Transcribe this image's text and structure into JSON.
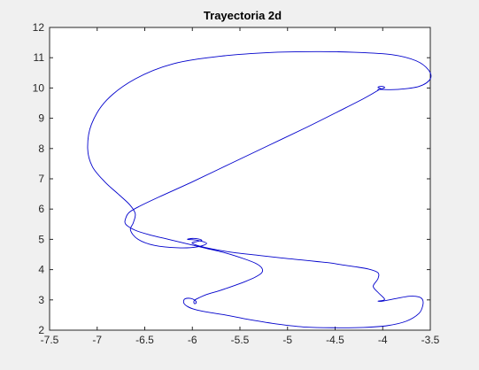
{
  "chart_data": {
    "type": "line",
    "title": "Trayectoria 2d",
    "xlabel": "",
    "ylabel": "",
    "xlim": [
      -7.5,
      -3.5
    ],
    "ylim": [
      2,
      12
    ],
    "xticks": [
      -7.5,
      -7,
      -6.5,
      -6,
      -5.5,
      -5,
      -4.5,
      -4,
      -3.5
    ],
    "xtick_labels": [
      "-7.5",
      "-7",
      "-6.5",
      "-6",
      "-5.5",
      "-5",
      "-4.5",
      "-4",
      "-3.5"
    ],
    "yticks": [
      2,
      3,
      4,
      5,
      6,
      7,
      8,
      9,
      10,
      11,
      12
    ],
    "ytick_labels": [
      "2",
      "3",
      "4",
      "5",
      "6",
      "7",
      "8",
      "9",
      "10",
      "11",
      "12"
    ],
    "grid": false,
    "series": [
      {
        "color": "#0000cc",
        "x": [
          -4.03,
          -4.05,
          -4.03,
          -4.0,
          -3.98,
          -4.0,
          -4.05,
          -4.02,
          -3.85,
          -3.62,
          -3.5,
          -3.52,
          -3.65,
          -3.9,
          -4.3,
          -4.7,
          -5.2,
          -5.7,
          -6.2,
          -6.6,
          -6.9,
          -7.06,
          -7.1,
          -7.05,
          -6.92,
          -6.78,
          -6.66,
          -6.6,
          -6.62,
          -6.65,
          -6.57,
          -6.4,
          -6.15,
          -5.95,
          -5.85,
          -5.95,
          -6.05,
          -6.0,
          -5.95,
          -5.9,
          -5.95,
          -6.0,
          -5.85,
          -5.6,
          -5.3,
          -5.05,
          -4.85,
          -4.7,
          -4.55,
          -4.45,
          -4.3,
          -4.15,
          -4.05,
          -4.05,
          -4.1,
          -4.05,
          -4.0,
          -3.98,
          -4.0,
          -4.05,
          -4.0,
          -3.85,
          -3.72,
          -3.62,
          -3.58,
          -3.58,
          -3.62,
          -3.75,
          -3.95,
          -4.2,
          -4.5,
          -4.8,
          -5.1,
          -5.4,
          -5.65,
          -5.85,
          -5.97,
          -6.05,
          -6.09,
          -6.08,
          -6.02,
          -5.97,
          -5.96,
          -5.98,
          -5.98,
          -5.93,
          -5.85,
          -5.72,
          -5.58,
          -5.45,
          -5.34,
          -5.27,
          -5.27,
          -5.33,
          -5.45,
          -5.65,
          -5.85,
          -6.05,
          -6.25,
          -6.45,
          -6.6,
          -6.7,
          -6.7,
          -6.66,
          -6.55,
          -6.35,
          -6.0,
          -5.6,
          -5.2,
          -4.8,
          -4.45,
          -4.2,
          -4.05,
          -4.02
        ],
        "y": [
          10.0,
          10.02,
          10.05,
          10.05,
          10.02,
          9.98,
          9.95,
          9.95,
          9.95,
          10.05,
          10.3,
          10.6,
          10.9,
          11.1,
          11.18,
          11.2,
          11.17,
          11.05,
          10.8,
          10.3,
          9.6,
          8.8,
          8.0,
          7.4,
          6.9,
          6.5,
          6.15,
          5.85,
          5.55,
          5.3,
          5.0,
          4.8,
          4.72,
          4.75,
          4.87,
          4.97,
          5.0,
          5.03,
          5.02,
          4.97,
          4.93,
          4.87,
          4.72,
          4.58,
          4.47,
          4.38,
          4.32,
          4.27,
          4.22,
          4.17,
          4.1,
          4.02,
          3.9,
          3.7,
          3.45,
          3.25,
          3.1,
          3.02,
          2.98,
          2.96,
          2.96,
          3.05,
          3.12,
          3.1,
          3.0,
          2.8,
          2.55,
          2.3,
          2.15,
          2.09,
          2.08,
          2.1,
          2.2,
          2.35,
          2.5,
          2.6,
          2.68,
          2.78,
          2.9,
          3.03,
          3.05,
          2.98,
          2.9,
          2.88,
          2.98,
          3.07,
          3.18,
          3.3,
          3.45,
          3.6,
          3.75,
          3.9,
          4.05,
          4.2,
          4.35,
          4.55,
          4.7,
          4.85,
          5.0,
          5.15,
          5.3,
          5.5,
          5.7,
          5.9,
          6.1,
          6.4,
          6.9,
          7.5,
          8.1,
          8.7,
          9.25,
          9.65,
          9.92,
          10.0
        ]
      }
    ]
  }
}
